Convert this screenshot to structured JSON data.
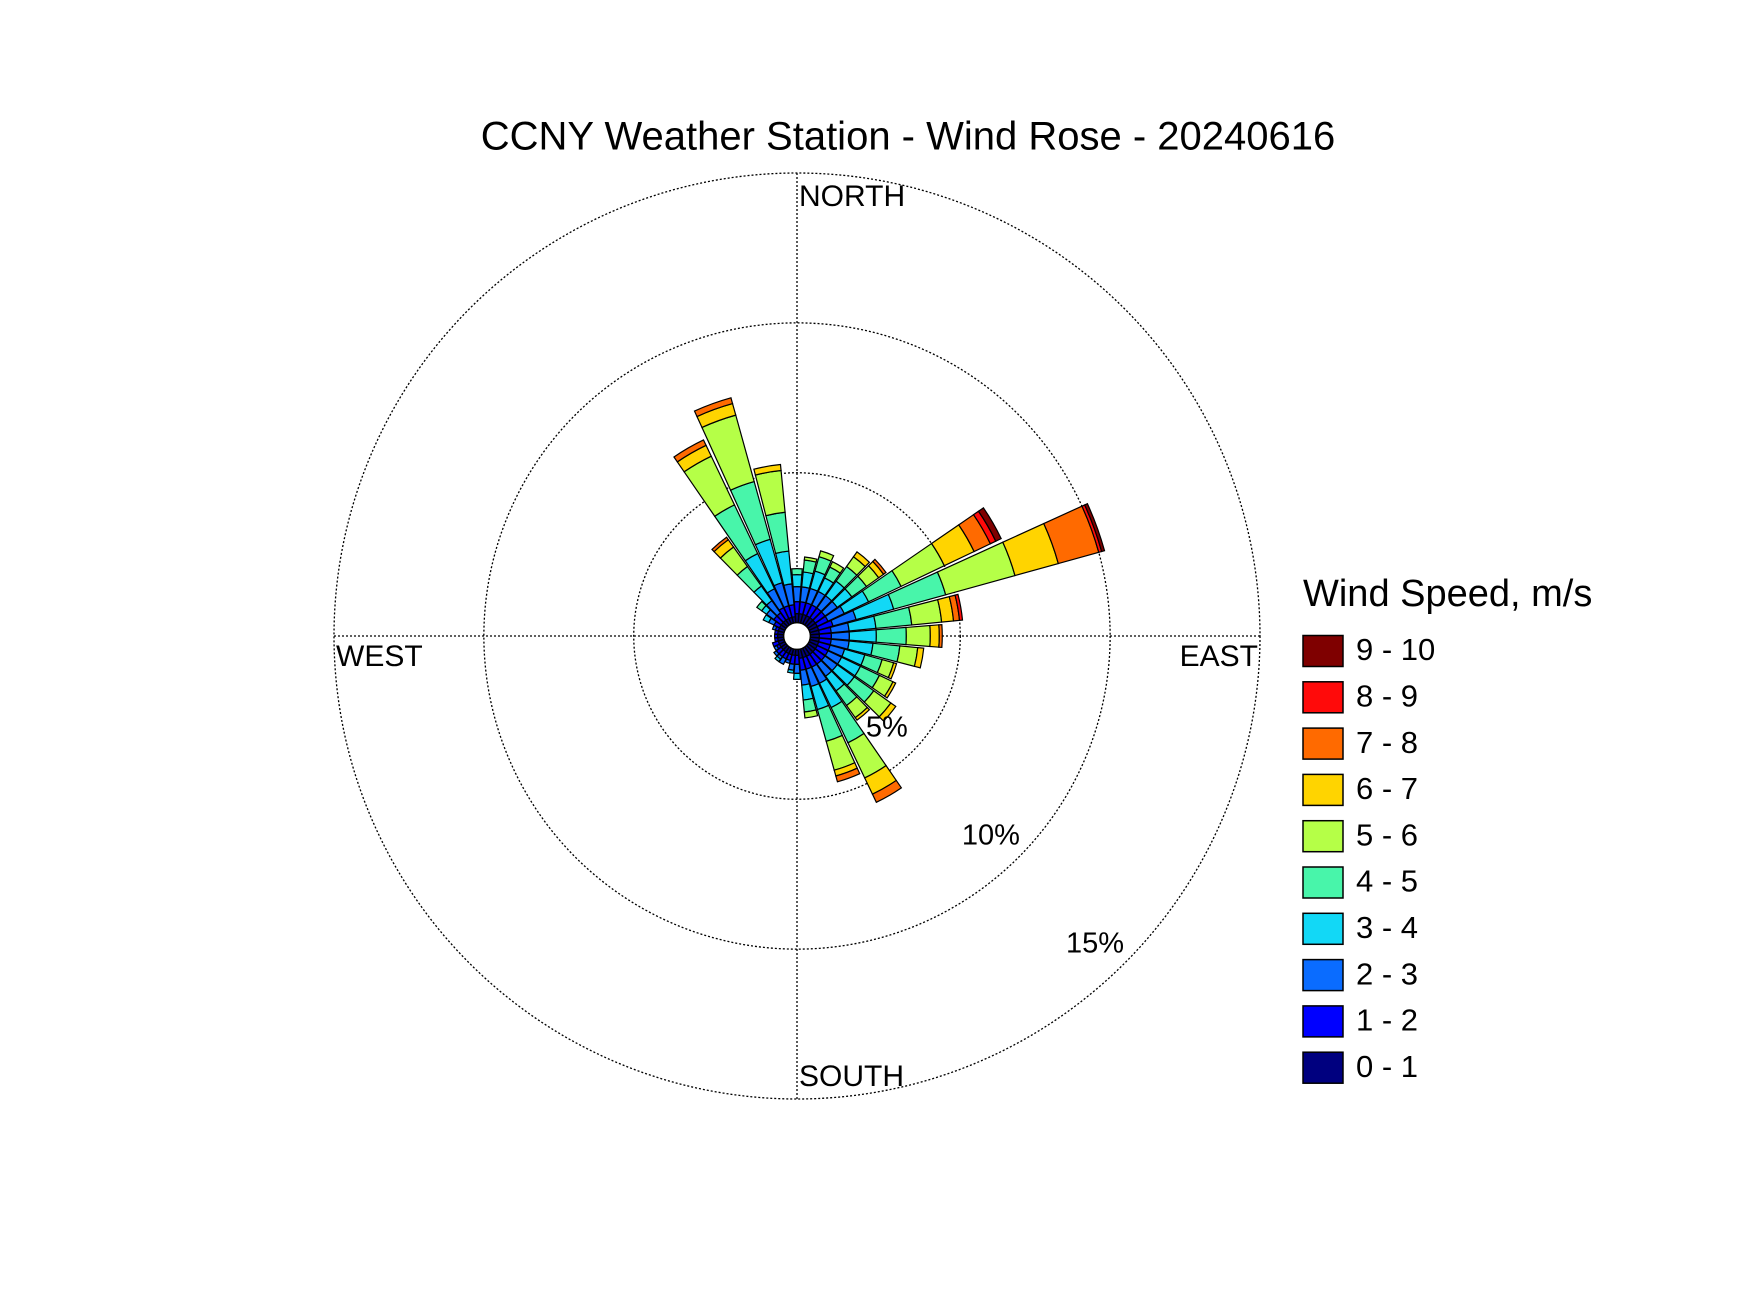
{
  "chart_data": {
    "type": "windrose",
    "title": "CCNY Weather Station - Wind Rose - 20240616",
    "direction_labels": {
      "north": "NORTH",
      "east": "EAST",
      "south": "SOUTH",
      "west": "WEST"
    },
    "legend_title": "Wind Speed, m/s",
    "x": [
      0,
      10,
      20,
      30,
      40,
      50,
      60,
      70,
      80,
      90,
      100,
      110,
      120,
      130,
      140,
      150,
      160,
      170,
      180,
      190,
      200,
      210,
      220,
      230,
      240,
      250,
      260,
      270,
      280,
      290,
      300,
      310,
      320,
      330,
      340,
      350
    ],
    "xlim": [
      0,
      360
    ],
    "rlim": [
      0,
      15
    ],
    "rticks": [
      {
        "value": 5,
        "label": "5%"
      },
      {
        "value": 10,
        "label": "10%"
      },
      {
        "value": 15,
        "label": "15%"
      }
    ],
    "grid": true,
    "legend": "right",
    "series": [
      {
        "name": "0 - 1",
        "color": "#00007f",
        "values": [
          0.3,
          0.3,
          0.3,
          0.3,
          0.3,
          0.3,
          0.3,
          0.3,
          0.3,
          0.3,
          0.3,
          0.3,
          0.3,
          0.3,
          0.3,
          0.3,
          0.3,
          0.3,
          0.2,
          0.2,
          0.2,
          0.2,
          0.2,
          0.2,
          0.2,
          0.2,
          0.2,
          0.2,
          0.2,
          0.2,
          0.2,
          0.2,
          0.2,
          0.2,
          0.2,
          0.2
        ]
      },
      {
        "name": "1 - 2",
        "color": "#0000ff",
        "values": [
          0.4,
          0.4,
          0.4,
          0.4,
          0.4,
          0.4,
          0.4,
          0.5,
          0.4,
          0.4,
          0.4,
          0.4,
          0.4,
          0.4,
          0.4,
          0.4,
          0.4,
          0.4,
          0.3,
          0.3,
          0.2,
          0.2,
          0.2,
          0.2,
          0.1,
          0.2,
          0.1,
          0.1,
          0.1,
          0.1,
          0.2,
          0.3,
          0.3,
          0.4,
          0.4,
          0.4
        ]
      },
      {
        "name": "2 - 3",
        "color": "#0a6cff",
        "values": [
          0.5,
          0.5,
          0.5,
          0.5,
          0.5,
          0.5,
          0.6,
          0.8,
          0.6,
          0.6,
          0.6,
          0.5,
          0.5,
          0.5,
          0.5,
          0.6,
          0.6,
          0.5,
          0.3,
          0.2,
          0.1,
          0.2,
          0.1,
          0.1,
          0.1,
          0,
          0,
          0,
          0,
          0.1,
          0.2,
          0.3,
          0.5,
          0.7,
          0.8,
          0.7
        ]
      },
      {
        "name": "3 - 4",
        "color": "#12d8f6",
        "values": [
          0.4,
          0.5,
          0.6,
          0.5,
          0.6,
          0.6,
          0.9,
          1.3,
          0.9,
          0.9,
          0.8,
          0.7,
          0.7,
          0.7,
          0.6,
          0.9,
          0.8,
          0.5,
          0.2,
          0.1,
          0,
          0,
          0.1,
          0,
          0,
          0,
          0,
          0,
          0,
          0,
          0.2,
          0.2,
          0.6,
          1.3,
          1.5,
          1.1
        ]
      },
      {
        "name": "4 - 5",
        "color": "#48f5aa",
        "values": [
          0.2,
          0.4,
          0.5,
          0.4,
          0.6,
          0.6,
          1.2,
          1.8,
          1.2,
          1.0,
          0.9,
          0.6,
          0.7,
          0.8,
          0.6,
          1.3,
          1.1,
          0.4,
          0,
          0,
          0,
          0,
          0,
          0,
          0,
          0,
          0,
          0,
          0,
          0,
          0,
          0.2,
          0.8,
          1.8,
          2.0,
          1.3
        ]
      },
      {
        "name": "5 - 6",
        "color": "#b5ff47",
        "values": [
          0,
          0.1,
          0.2,
          0.2,
          0.4,
          0.5,
          1.6,
          2.4,
          1.0,
          0.8,
          0.6,
          0.4,
          0.5,
          0.7,
          0.5,
          1.3,
          1.0,
          0.2,
          0,
          0,
          0,
          0,
          0,
          0,
          0,
          0,
          0,
          0,
          0,
          0,
          0,
          0,
          0.8,
          1.8,
          2.3,
          1.4
        ]
      },
      {
        "name": "6 - 7",
        "color": "#ffd400",
        "values": [
          0,
          0,
          0,
          0,
          0.2,
          0.2,
          1.1,
          1.5,
          0.4,
          0.3,
          0.2,
          0.1,
          0.1,
          0.2,
          0.1,
          0.6,
          0.2,
          0,
          0,
          0,
          0,
          0,
          0,
          0,
          0,
          0,
          0,
          0,
          0,
          0,
          0,
          0,
          0.3,
          0.4,
          0.4,
          0.2
        ]
      },
      {
        "name": "7 - 8",
        "color": "#ff6a00",
        "values": [
          0,
          0,
          0,
          0,
          0,
          0.1,
          0.6,
          1.4,
          0.2,
          0.1,
          0,
          0,
          0,
          0,
          0,
          0.3,
          0.2,
          0,
          0,
          0,
          0,
          0,
          0,
          0,
          0,
          0,
          0,
          0,
          0,
          0,
          0,
          0,
          0.1,
          0.2,
          0.2,
          0
        ]
      },
      {
        "name": "8 - 9",
        "color": "#ff0a0a",
        "values": [
          0,
          0,
          0,
          0,
          0,
          0,
          0.2,
          0.1,
          0.1,
          0,
          0,
          0,
          0,
          0,
          0,
          0,
          0,
          0,
          0,
          0,
          0,
          0,
          0,
          0,
          0,
          0,
          0,
          0,
          0,
          0,
          0,
          0,
          0,
          0,
          0,
          0
        ]
      },
      {
        "name": "9 - 10",
        "color": "#7f0000",
        "values": [
          0,
          0,
          0,
          0,
          0,
          0,
          0.2,
          0.1,
          0,
          0,
          0,
          0,
          0,
          0,
          0,
          0,
          0,
          0,
          0,
          0,
          0,
          0,
          0,
          0,
          0,
          0,
          0,
          0,
          0,
          0,
          0,
          0,
          0,
          0,
          0,
          0
        ]
      }
    ]
  }
}
